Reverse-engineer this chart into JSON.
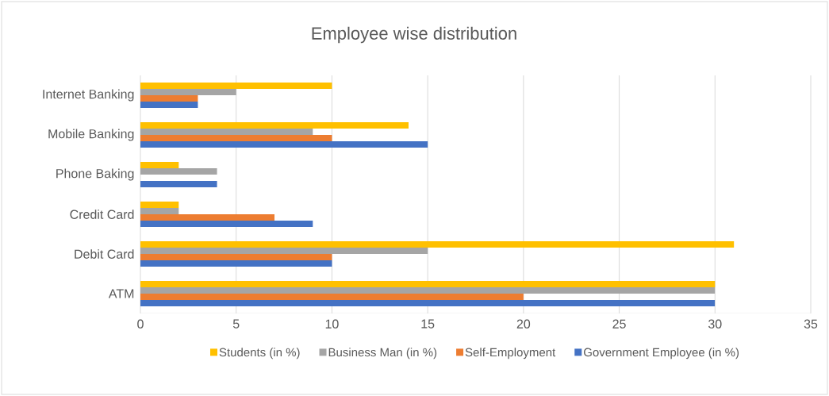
{
  "chart_data": {
    "type": "bar",
    "orientation": "horizontal",
    "title": "Employee wise distribution",
    "categories": [
      "Internet Banking",
      "Mobile Banking",
      "Phone Baking",
      "Credit Card",
      "Debit Card",
      "ATM"
    ],
    "series": [
      {
        "name": "Students (in %)",
        "color": "#ffc000",
        "values": [
          10,
          14,
          2,
          2,
          31,
          30
        ]
      },
      {
        "name": "Business Man (in %)",
        "color": "#a5a5a5",
        "values": [
          5,
          9,
          4,
          2,
          15,
          30
        ]
      },
      {
        "name": "Self-Employment",
        "color": "#ed7d31",
        "values": [
          3,
          10,
          0,
          7,
          10,
          20
        ]
      },
      {
        "name": "Government Employee (in %)",
        "color": "#4472c4",
        "values": [
          3,
          15,
          4,
          9,
          10,
          30
        ]
      }
    ],
    "xlim": [
      0,
      35
    ],
    "xticks": [
      0,
      5,
      10,
      15,
      20,
      25,
      30,
      35
    ],
    "grid": "x",
    "legend": "bottom"
  }
}
